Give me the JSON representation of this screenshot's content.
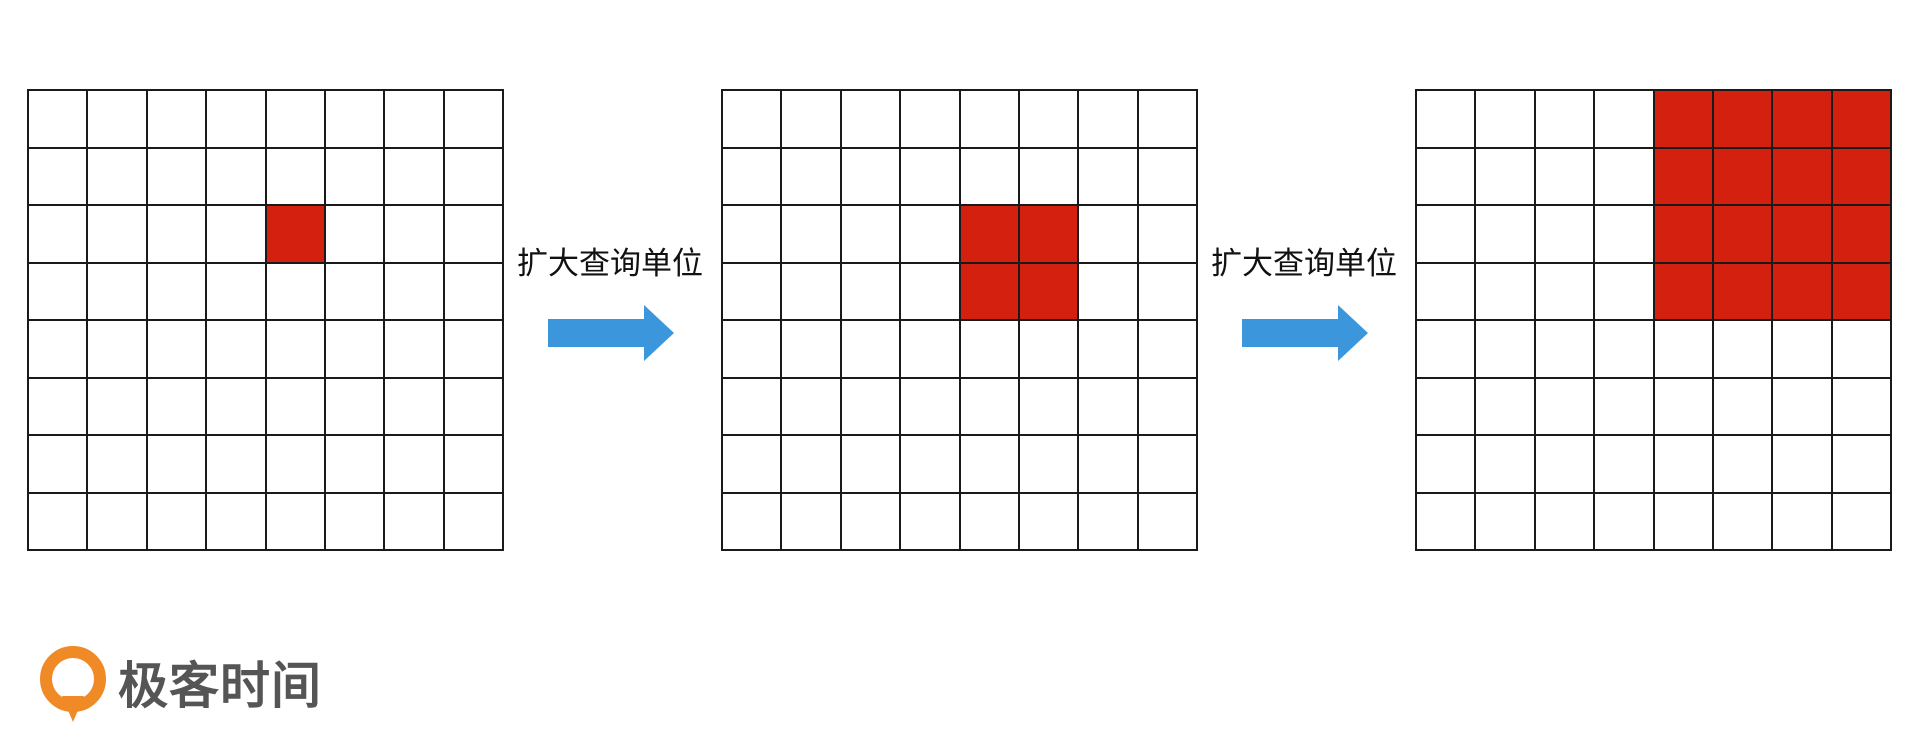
{
  "colors": {
    "highlight": "#d4210f",
    "arrow": "#3b96dc",
    "logo_orange": "#f08a26",
    "logo_text": "#555555"
  },
  "grids": [
    {
      "rows": 8,
      "cols": 8,
      "highlight": [
        [
          2,
          4
        ]
      ]
    },
    {
      "rows": 8,
      "cols": 8,
      "highlight": [
        [
          2,
          4
        ],
        [
          2,
          5
        ],
        [
          3,
          4
        ],
        [
          3,
          5
        ]
      ]
    },
    {
      "rows": 8,
      "cols": 8,
      "highlight": [
        [
          0,
          4
        ],
        [
          0,
          5
        ],
        [
          0,
          6
        ],
        [
          0,
          7
        ],
        [
          1,
          4
        ],
        [
          1,
          5
        ],
        [
          1,
          6
        ],
        [
          1,
          7
        ],
        [
          2,
          4
        ],
        [
          2,
          5
        ],
        [
          2,
          6
        ],
        [
          2,
          7
        ],
        [
          3,
          4
        ],
        [
          3,
          5
        ],
        [
          3,
          6
        ],
        [
          3,
          7
        ]
      ]
    }
  ],
  "steps": [
    {
      "label": "扩大查询单位",
      "arrow_icon": "right-arrow-icon"
    },
    {
      "label": "扩大查询单位",
      "arrow_icon": "right-arrow-icon"
    }
  ],
  "brand": {
    "name": "极客时间",
    "logo_icon": "geektime-logo-icon"
  }
}
